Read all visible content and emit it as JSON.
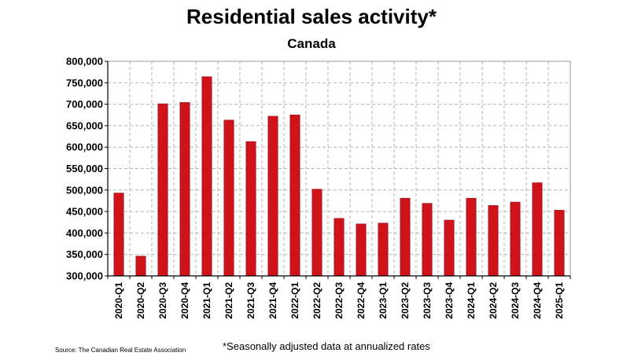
{
  "chart_data": {
    "type": "bar",
    "title": "Residential sales activity*",
    "subtitle": "Canada",
    "categories": [
      "2020-Q1",
      "2020-Q2",
      "2020-Q3",
      "2020-Q4",
      "2021-Q1",
      "2021-Q2",
      "2021-Q3",
      "2021-Q4",
      "2022-Q1",
      "2022-Q2",
      "2022-Q3",
      "2022-Q4",
      "2023-Q1",
      "2023-Q2",
      "2023-Q3",
      "2023-Q4",
      "2024-Q1",
      "2024-Q2",
      "2024-Q3",
      "2024-Q4",
      "2025-Q1"
    ],
    "values": [
      493000,
      346000,
      701000,
      704000,
      764000,
      663000,
      613000,
      672000,
      675000,
      502000,
      434000,
      421000,
      423000,
      481000,
      469000,
      430000,
      481000,
      464000,
      472000,
      517000,
      453000
    ],
    "ylim": [
      300000,
      800000
    ],
    "yticks": [
      300000,
      350000,
      400000,
      450000,
      500000,
      550000,
      600000,
      650000,
      700000,
      750000,
      800000
    ],
    "ytick_labels": [
      "300,000",
      "350,000",
      "400,000",
      "450,000",
      "500,000",
      "550,000",
      "600,000",
      "650,000",
      "700,000",
      "750,000",
      "800,000"
    ],
    "grid": true,
    "bar_color": "#d0121b",
    "source": "Source: The Canadian Real Estate Association",
    "footnote": "*Seasonally adjusted data at annualized rates"
  }
}
